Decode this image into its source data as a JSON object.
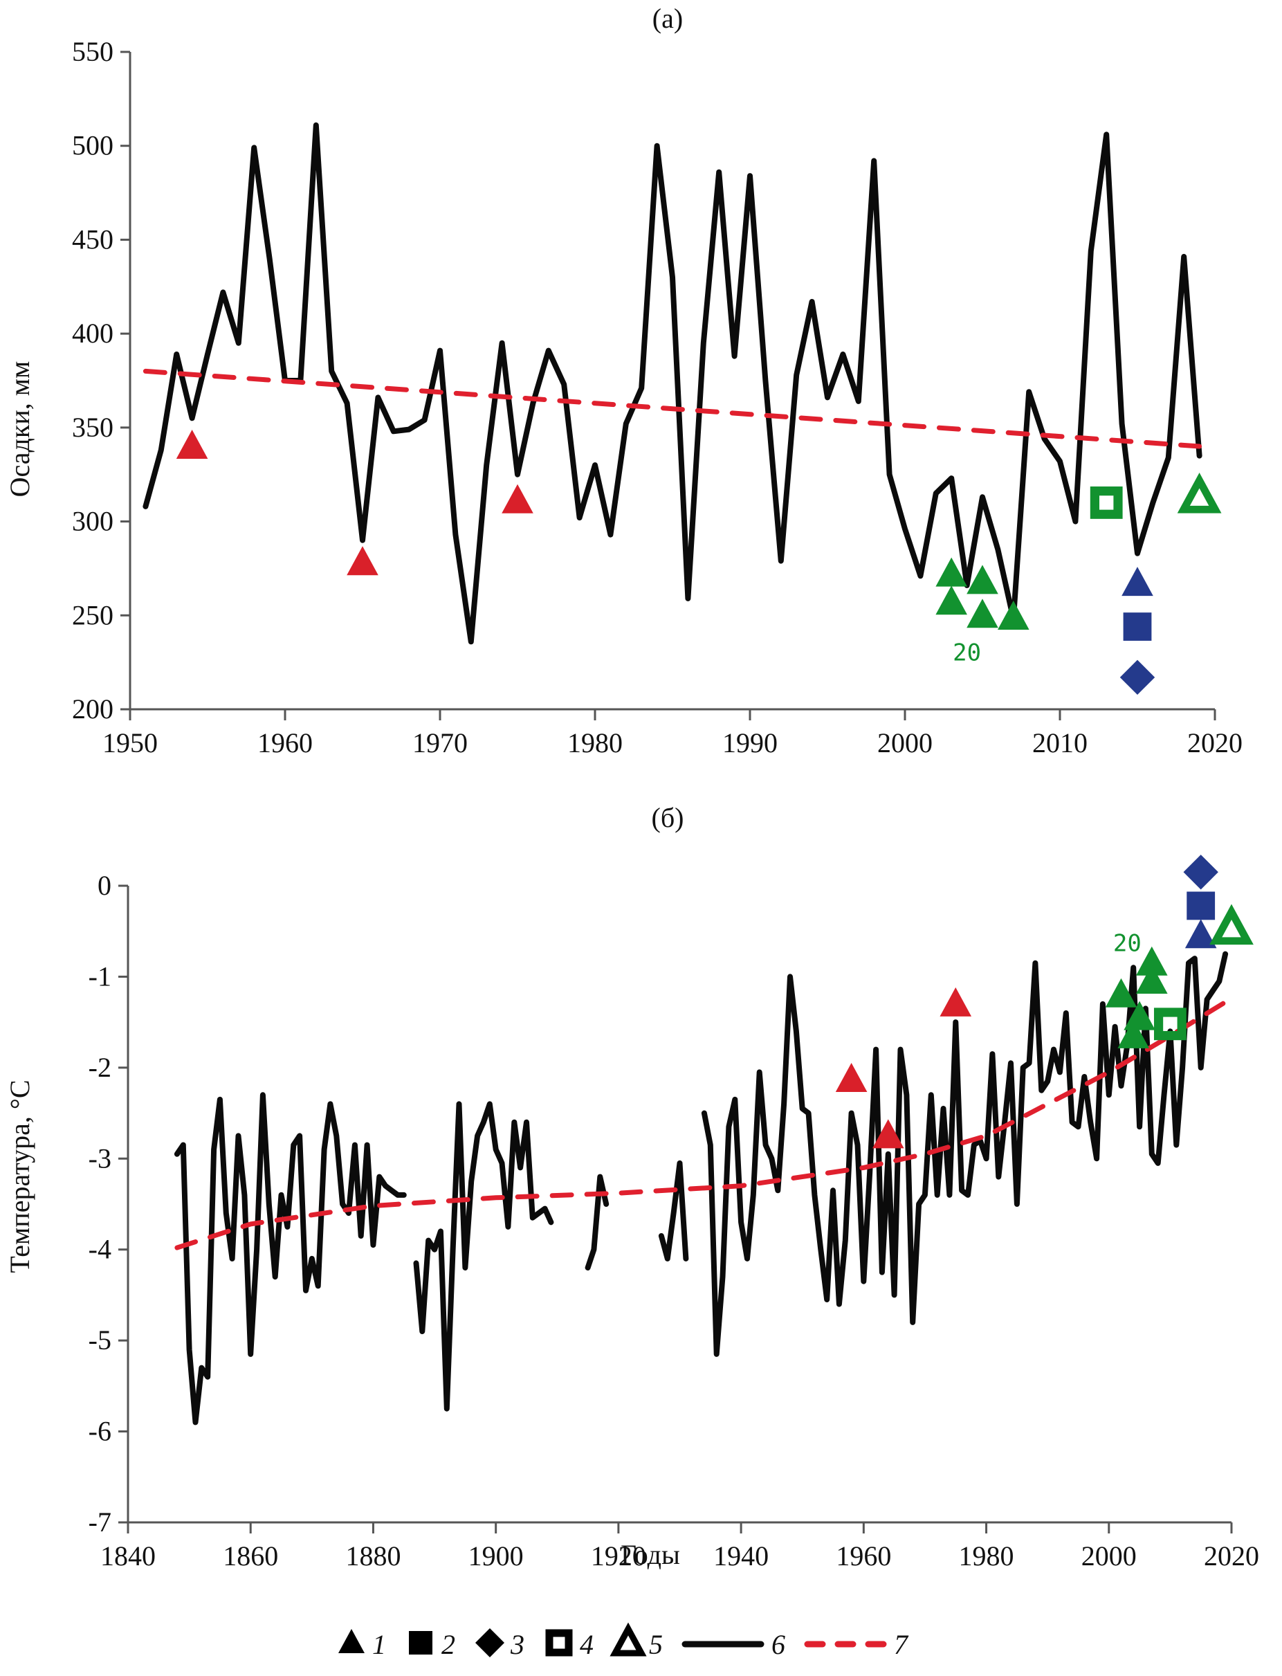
{
  "chart_data": [
    {
      "panel": "(a)",
      "type": "line",
      "title": "(a)",
      "xlabel": "",
      "ylabel": "Осадки, мм",
      "xlim": [
        1950,
        2020
      ],
      "ylim": [
        200,
        550
      ],
      "xticks": [
        1950,
        1960,
        1970,
        1980,
        1990,
        2000,
        2010,
        2020
      ],
      "yticks": [
        200,
        250,
        300,
        350,
        400,
        450,
        500,
        550
      ],
      "grid": false,
      "series": [
        {
          "name": "6",
          "style": "solid-black",
          "x": [
            1951,
            1952,
            1953,
            1954,
            1955,
            1956,
            1957,
            1958,
            1959,
            1960,
            1961,
            1962,
            1963,
            1964,
            1965,
            1966,
            1967,
            1968,
            1969,
            1970,
            1971,
            1972,
            1973,
            1974,
            1975,
            1976,
            1977,
            1978,
            1979,
            1980,
            1981,
            1982,
            1983,
            1984,
            1985,
            1986,
            1987,
            1988,
            1989,
            1990,
            1991,
            1992,
            1993,
            1994,
            1995,
            1996,
            1997,
            1998,
            1999,
            2000,
            2001,
            2002,
            2003,
            2004,
            2005,
            2006,
            2007,
            2008,
            2009,
            2010,
            2011,
            2012,
            2013,
            2014,
            2015,
            2016,
            2017,
            2018,
            2019
          ],
          "y": [
            308,
            338,
            389,
            355,
            389,
            422,
            395,
            499,
            440,
            375,
            375,
            511,
            380,
            363,
            290,
            366,
            348,
            349,
            354,
            391,
            293,
            236,
            330,
            395,
            325,
            363,
            391,
            373,
            302,
            330,
            293,
            352,
            371,
            500,
            430,
            259,
            395,
            486,
            388,
            484,
            375,
            279,
            378,
            417,
            366,
            389,
            364,
            492,
            325,
            296,
            271,
            315,
            323,
            266,
            313,
            285,
            248,
            369,
            344,
            332,
            300,
            444,
            506,
            352,
            283,
            310,
            334,
            441,
            335
          ]
        },
        {
          "name": "7",
          "style": "dashed-red-trend",
          "x": [
            1951,
            2019
          ],
          "y": [
            380,
            340
          ]
        }
      ],
      "markers": [
        {
          "type": "1",
          "shape": "filled-triangle",
          "color": "#d9202a",
          "points": [
            [
              1954,
              340
            ],
            [
              1965,
              278
            ],
            [
              1975,
              311
            ]
          ]
        },
        {
          "type": "5-filled",
          "shape": "filled-triangle",
          "color": "#12922f",
          "points": [
            [
              2003,
              272
            ],
            [
              2003,
              257
            ],
            [
              2005,
              268
            ],
            [
              2005,
              250
            ],
            [
              2007,
              249
            ]
          ]
        },
        {
          "type": "1",
          "shape": "filled-triangle",
          "color": "#243a8c",
          "points": [
            [
              2015,
              267
            ]
          ]
        },
        {
          "type": "2",
          "shape": "filled-square",
          "color": "#243a8c",
          "points": [
            [
              2015,
              244
            ]
          ]
        },
        {
          "type": "3",
          "shape": "filled-diamond",
          "color": "#243a8c",
          "points": [
            [
              2015,
              217
            ]
          ]
        },
        {
          "type": "4",
          "shape": "hollow-square",
          "color": "#12922f",
          "points": [
            [
              2013,
              310
            ]
          ]
        },
        {
          "type": "5",
          "shape": "hollow-triangle",
          "color": "#12922f",
          "points": [
            [
              2019,
              313
            ]
          ]
        }
      ],
      "annotations": [
        {
          "text": "20",
          "x": 2004,
          "y": 226,
          "color": "#12922f"
        }
      ]
    },
    {
      "panel": "(б)",
      "type": "line",
      "title": "(б)",
      "xlabel": "Годы",
      "ylabel": "Температура, °С",
      "xlim": [
        1840,
        2020
      ],
      "ylim": [
        -7,
        0
      ],
      "xticks": [
        1840,
        1860,
        1880,
        1900,
        1920,
        1940,
        1960,
        1980,
        2000,
        2020
      ],
      "yticks": [
        -7,
        -6,
        -5,
        -4,
        -3,
        -2,
        -1,
        0
      ],
      "grid": false,
      "series": [
        {
          "name": "6",
          "style": "solid-black",
          "segments": [
            {
              "x": [
                1848,
                1849,
                1850,
                1851,
                1852,
                1853,
                1854,
                1855,
                1856,
                1857,
                1858,
                1859,
                1860,
                1861,
                1862,
                1863,
                1864,
                1865,
                1866,
                1867,
                1868,
                1869,
                1870,
                1871,
                1872,
                1873,
                1874,
                1875,
                1876,
                1877,
                1878,
                1879,
                1880,
                1881,
                1882,
                1883,
                1884,
                1885
              ],
              "y": [
                -2.95,
                -2.85,
                -5.1,
                -5.9,
                -5.3,
                -5.4,
                -2.9,
                -2.35,
                -3.6,
                -4.1,
                -2.75,
                -3.4,
                -5.15,
                -4.0,
                -2.3,
                -3.5,
                -4.3,
                -3.4,
                -3.75,
                -2.85,
                -2.75,
                -4.45,
                -4.1,
                -4.4,
                -2.9,
                -2.4,
                -2.75,
                -3.5,
                -3.6,
                -2.85,
                -3.85,
                -2.85,
                -3.95,
                -3.2,
                -3.3,
                -3.35,
                -3.4,
                -3.4
              ]
            },
            {
              "x": [
                1887,
                1888,
                1889,
                1890,
                1891,
                1892,
                1893,
                1894,
                1895,
                1896,
                1897,
                1898,
                1899,
                1900,
                1901,
                1902,
                1903,
                1904,
                1905,
                1906,
                1907,
                1908,
                1909
              ],
              "y": [
                -4.15,
                -4.9,
                -3.9,
                -4.0,
                -3.8,
                -5.75,
                -4.0,
                -2.4,
                -4.2,
                -3.25,
                -2.75,
                -2.6,
                -2.4,
                -2.9,
                -3.05,
                -3.75,
                -2.6,
                -3.1,
                -2.6,
                -3.65,
                -3.6,
                -3.55,
                -3.7
              ]
            },
            {
              "x": [
                1915,
                1916,
                1917,
                1918
              ],
              "y": [
                -4.2,
                -4.0,
                -3.2,
                -3.5
              ]
            },
            {
              "x": [
                1927,
                1928,
                1929,
                1930,
                1931
              ],
              "y": [
                -3.85,
                -4.1,
                -3.6,
                -3.05,
                -4.1
              ]
            },
            {
              "x": [
                1934,
                1935,
                1936,
                1937,
                1938,
                1939,
                1940,
                1941,
                1942,
                1943,
                1944,
                1945,
                1946,
                1947,
                1948,
                1949,
                1950,
                1951,
                1952,
                1953,
                1954,
                1955,
                1956,
                1957,
                1958,
                1959,
                1960,
                1961,
                1962,
                1963,
                1964,
                1965,
                1966,
                1967,
                1968,
                1969,
                1970,
                1971,
                1972,
                1973,
                1974,
                1975,
                1976,
                1977,
                1978,
                1979,
                1980,
                1981,
                1982,
                1983,
                1984,
                1985,
                1986,
                1987,
                1988,
                1989,
                1990,
                1991,
                1992,
                1993,
                1994,
                1995,
                1996,
                1997,
                1998,
                1999,
                2000,
                2001,
                2002,
                2003,
                2004,
                2005,
                2006,
                2007,
                2008,
                2009,
                2010,
                2011,
                2012,
                2013,
                2014,
                2015,
                2016,
                2017,
                2018,
                2019
              ],
              "y": [
                -2.5,
                -2.85,
                -5.15,
                -4.3,
                -2.65,
                -2.35,
                -3.7,
                -4.1,
                -3.4,
                -2.05,
                -2.85,
                -3.0,
                -3.35,
                -2.4,
                -1.0,
                -1.6,
                -2.45,
                -2.5,
                -3.4,
                -4.0,
                -4.55,
                -3.35,
                -4.6,
                -3.9,
                -2.5,
                -2.85,
                -4.35,
                -3.15,
                -1.8,
                -4.25,
                -2.95,
                -4.5,
                -1.8,
                -2.3,
                -4.8,
                -3.5,
                -3.4,
                -2.3,
                -3.4,
                -2.45,
                -3.4,
                -1.5,
                -3.35,
                -3.4,
                -2.85,
                -2.8,
                -3.0,
                -1.85,
                -3.2,
                -2.6,
                -1.95,
                -3.5,
                -2.0,
                -1.95,
                -0.85,
                -2.25,
                -2.15,
                -1.8,
                -2.05,
                -1.4,
                -2.6,
                -2.65,
                -2.1,
                -2.6,
                -3.0,
                -1.3,
                -2.3,
                -1.55,
                -2.2,
                -1.75,
                -0.9,
                -2.65,
                -1.35,
                -2.95,
                -3.05,
                -2.3,
                -1.6,
                -2.85,
                -2.0,
                -0.85,
                -0.8,
                -2.0,
                -1.25,
                -1.15,
                -1.05,
                -0.75
              ]
            }
          ]
        },
        {
          "name": "7",
          "style": "dashed-red-trend",
          "x": [
            1848,
            1860,
            1880,
            1900,
            1920,
            1940,
            1960,
            1970,
            1980,
            1990,
            2000,
            2010,
            2019
          ],
          "y": [
            -3.98,
            -3.72,
            -3.52,
            -3.43,
            -3.38,
            -3.3,
            -3.1,
            -2.95,
            -2.75,
            -2.4,
            -2.05,
            -1.65,
            -1.28
          ]
        }
      ],
      "markers": [
        {
          "type": "1",
          "shape": "filled-triangle",
          "color": "#d9202a",
          "points": [
            [
              1958,
              -2.13
            ],
            [
              1964,
              -2.75
            ],
            [
              1975,
              -1.3
            ]
          ]
        },
        {
          "type": "5-filled",
          "shape": "filled-triangle",
          "color": "#12922f",
          "points": [
            [
              2002,
              -1.2
            ],
            [
              2004,
              -1.65
            ],
            [
              2005,
              -1.45
            ],
            [
              2007,
              -0.85
            ],
            [
              2007,
              -1.05
            ]
          ]
        },
        {
          "type": "4",
          "shape": "hollow-square",
          "color": "#12922f",
          "points": [
            [
              2010,
              -1.52
            ]
          ]
        },
        {
          "type": "1",
          "shape": "filled-triangle",
          "color": "#243a8c",
          "points": [
            [
              2015,
              -0.55
            ]
          ]
        },
        {
          "type": "2",
          "shape": "filled-square",
          "color": "#243a8c",
          "points": [
            [
              2015,
              -0.22
            ]
          ]
        },
        {
          "type": "3",
          "shape": "filled-diamond",
          "color": "#243a8c",
          "points": [
            [
              2015,
              0.15
            ]
          ]
        },
        {
          "type": "5",
          "shape": "hollow-triangle",
          "color": "#12922f",
          "points": [
            [
              2020,
              -0.47
            ]
          ]
        }
      ],
      "annotations": [
        {
          "text": "20",
          "x": 2003,
          "y": -0.72,
          "color": "#12922f"
        }
      ]
    }
  ],
  "legend": {
    "placement": "bottom-center",
    "items": [
      {
        "symbol": "filled-triangle",
        "label": "1"
      },
      {
        "symbol": "filled-square",
        "label": "2"
      },
      {
        "symbol": "filled-diamond",
        "label": "3"
      },
      {
        "symbol": "hollow-square",
        "label": "4"
      },
      {
        "symbol": "hollow-triangle",
        "label": "5"
      },
      {
        "symbol": "solid-line",
        "label": "6"
      },
      {
        "symbol": "dashed-red-line",
        "label": "7"
      }
    ]
  },
  "colors": {
    "line": "#0b0b0b",
    "trend": "#e0202e",
    "red": "#d9202a",
    "green": "#12922f",
    "blue": "#243a8c",
    "axis": "#555555"
  }
}
